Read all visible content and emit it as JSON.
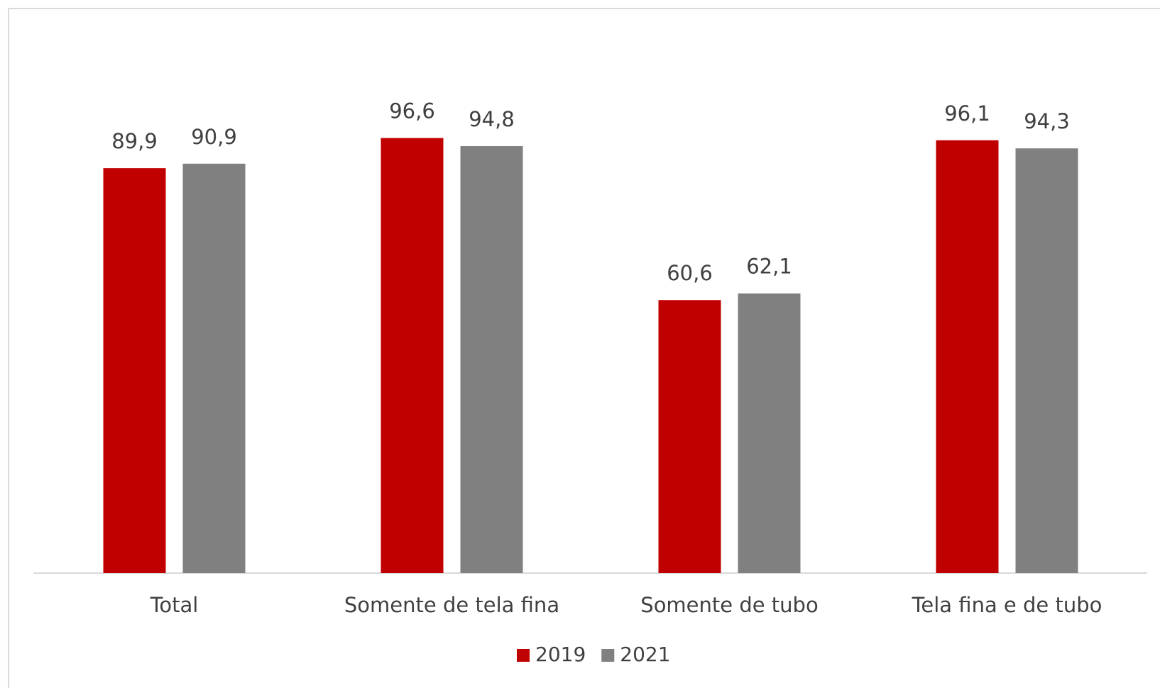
{
  "chart_data": {
    "type": "bar",
    "categories": [
      "Total",
      "Somente de tela fina",
      "Somente de tubo",
      "Tela fina e de tubo"
    ],
    "series": [
      {
        "name": "2019",
        "color": "#c00000",
        "values": [
          89.9,
          96.6,
          60.6,
          96.1
        ],
        "value_labels": [
          "89,9",
          "96,6",
          "60,6",
          "96,1"
        ]
      },
      {
        "name": "2021",
        "color": "#808080",
        "values": [
          90.9,
          94.8,
          62.1,
          94.3
        ],
        "value_labels": [
          "90,9",
          "94,8",
          "62,1",
          "94,3"
        ]
      }
    ],
    "legend": "bottom"
  }
}
